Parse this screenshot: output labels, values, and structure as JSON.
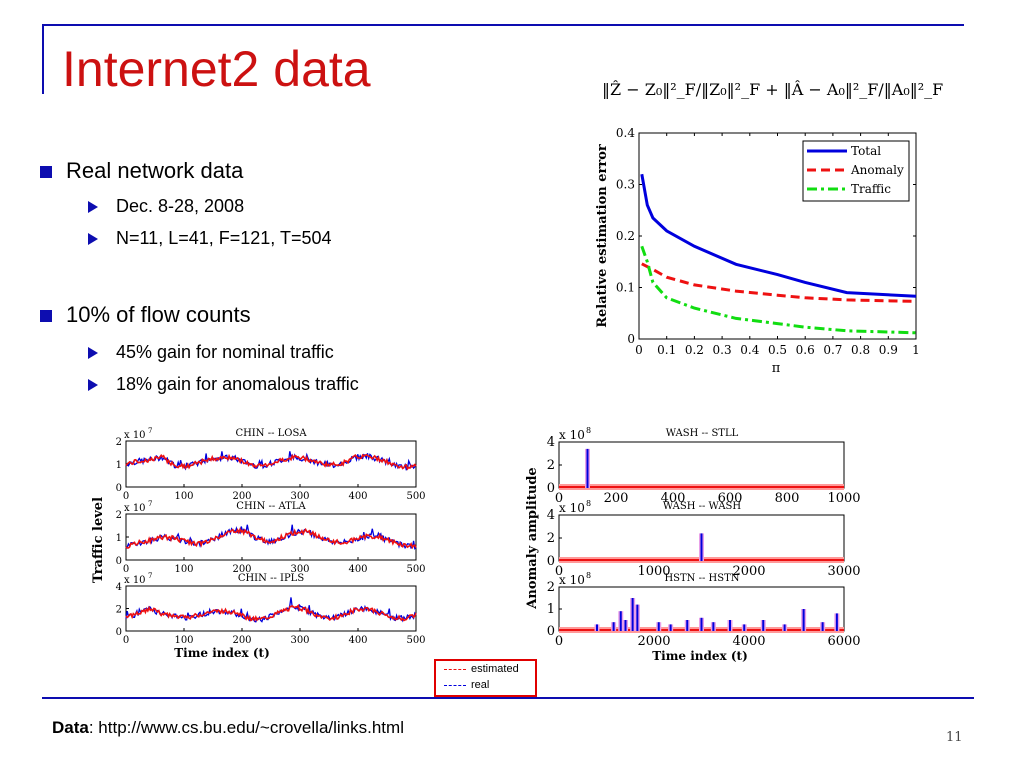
{
  "slide": {
    "title": "Internet2 data",
    "formula": "‖Ẑ − Z₀‖²_F/‖Z₀‖²_F + ‖Â − A₀‖²_F/‖A₀‖²_F",
    "bullets": [
      {
        "text": "Real network data",
        "sub": [
          "Dec. 8-28, 2008",
          "N=11, L=41, F=121, T=504"
        ]
      },
      {
        "text": "10% of flow counts",
        "sub": [
          "45% gain for  nominal traffic",
          "18% gain for anomalous traffic"
        ]
      }
    ],
    "footer_label": "Data",
    "footer_url": ": http://www.cs.bu.edu/~crovella/links.html",
    "page_number": "11",
    "legend_estimated": "estimated",
    "legend_real": "real",
    "colors": {
      "title": "#cc1111",
      "accent": "#0d0db0",
      "total": "#0000dd",
      "anomaly": "#ee1111",
      "traffic": "#11dd11"
    }
  },
  "chart_data": [
    {
      "id": "main",
      "type": "line",
      "ylabel": "Relative estimation error",
      "xlabel": "π",
      "xlim": [
        0,
        1
      ],
      "ylim": [
        0,
        0.4
      ],
      "xticks": [
        "0",
        "0.1",
        "0.2",
        "0.3",
        "0.4",
        "0.5",
        "0.6",
        "0.7",
        "0.8",
        "0.9",
        "1"
      ],
      "yticks": [
        "0",
        "0.1",
        "0.2",
        "0.3",
        "0.4"
      ],
      "legend": "top-right",
      "series": [
        {
          "name": "Total",
          "style": "solid",
          "color": "#0000dd",
          "x": [
            0.01,
            0.03,
            0.05,
            0.1,
            0.2,
            0.35,
            0.5,
            0.6,
            0.75,
            1.0
          ],
          "y": [
            0.32,
            0.26,
            0.235,
            0.21,
            0.18,
            0.145,
            0.125,
            0.11,
            0.09,
            0.083
          ]
        },
        {
          "name": "Anomaly",
          "style": "dashed",
          "color": "#ee1111",
          "x": [
            0.01,
            0.05,
            0.1,
            0.2,
            0.35,
            0.5,
            0.6,
            0.75,
            1.0
          ],
          "y": [
            0.146,
            0.135,
            0.12,
            0.105,
            0.093,
            0.085,
            0.08,
            0.076,
            0.073
          ]
        },
        {
          "name": "Traffic",
          "style": "dashdot",
          "color": "#11dd11",
          "x": [
            0.01,
            0.03,
            0.05,
            0.1,
            0.2,
            0.35,
            0.5,
            0.6,
            0.75,
            1.0
          ],
          "y": [
            0.18,
            0.15,
            0.11,
            0.08,
            0.06,
            0.04,
            0.03,
            0.023,
            0.016,
            0.012
          ]
        }
      ]
    },
    {
      "id": "traffic",
      "type": "line",
      "ylabel": "Traffic level",
      "xlabel": "Time index (t)",
      "panels": [
        {
          "title": "CHIN -- LOSA",
          "exponent": "x 10",
          "exp_power": "7",
          "xlim": [
            0,
            500
          ],
          "ylim": [
            0,
            2
          ],
          "xticks": [
            "0",
            "100",
            "200",
            "300",
            "400",
            "500"
          ],
          "yticks": [
            "0",
            "1",
            "2"
          ],
          "profile": [
            1.0,
            1.12,
            1.18,
            1.3,
            0.95,
            0.88,
            1.05,
            1.22,
            1.28,
            1.25,
            1.05,
            0.9,
            1.02,
            1.2,
            1.3,
            1.22,
            1.05,
            0.95,
            1.05,
            1.3,
            1.35,
            1.2,
            1.0,
            0.85,
            0.95
          ]
        },
        {
          "title": "CHIN -- ATLA",
          "exponent": "x 10",
          "exp_power": "7",
          "xlim": [
            0,
            500
          ],
          "ylim": [
            0,
            2
          ],
          "xticks": [
            "0",
            "100",
            "200",
            "300",
            "400",
            "500"
          ],
          "yticks": [
            "0",
            "1",
            "2"
          ],
          "profile": [
            0.55,
            0.75,
            0.85,
            1.0,
            0.95,
            0.8,
            0.7,
            0.85,
            1.1,
            1.3,
            1.2,
            0.9,
            0.8,
            1.0,
            1.2,
            1.25,
            1.0,
            0.8,
            0.75,
            0.9,
            1.05,
            1.0,
            0.8,
            0.65,
            0.6
          ]
        },
        {
          "title": "CHIN -- IPLS",
          "exponent": "x 10",
          "exp_power": "7",
          "xlim": [
            0,
            500
          ],
          "ylim": [
            0,
            4
          ],
          "xticks": [
            "0",
            "100",
            "200",
            "300",
            "400",
            "500"
          ],
          "yticks": [
            "0",
            "2",
            "4"
          ],
          "profile": [
            1.3,
            1.5,
            2.0,
            1.5,
            1.3,
            1.2,
            1.4,
            1.7,
            1.8,
            1.6,
            1.2,
            1.0,
            1.3,
            1.8,
            2.2,
            1.8,
            1.3,
            1.1,
            1.4,
            1.9,
            2.0,
            1.6,
            1.2,
            1.1,
            1.4
          ]
        }
      ]
    },
    {
      "id": "anomaly",
      "type": "line",
      "ylabel": "Anomaly amplitude",
      "xlabel": "Time index (t)",
      "panels": [
        {
          "title": "WASH -- STLL",
          "exponent": "x 10",
          "exp_power": "8",
          "xlim": [
            0,
            1000
          ],
          "ylim": [
            0,
            4
          ],
          "xticks": [
            "0",
            "200",
            "400",
            "600",
            "800",
            "1000"
          ],
          "yticks": [
            "0",
            "2",
            "4"
          ],
          "spikes": [
            {
              "x": 100,
              "y": 3.4
            }
          ]
        },
        {
          "title": "WASH -- WASH",
          "exponent": "x 10",
          "exp_power": "8",
          "xlim": [
            0,
            3000
          ],
          "ylim": [
            0,
            4
          ],
          "xticks": [
            "0",
            "1000",
            "2000",
            "3000"
          ],
          "yticks": [
            "0",
            "2",
            "4"
          ],
          "spikes": [
            {
              "x": 1500,
              "y": 2.4
            }
          ]
        },
        {
          "title": "HSTN -- HSTN",
          "exponent": "x 10",
          "exp_power": "8",
          "xlim": [
            0,
            6000
          ],
          "ylim": [
            0,
            2
          ],
          "xticks": [
            "0",
            "2000",
            "4000",
            "6000"
          ],
          "yticks": [
            "0",
            "1",
            "2"
          ],
          "spikes": [
            {
              "x": 800,
              "y": 0.3
            },
            {
              "x": 1150,
              "y": 0.4
            },
            {
              "x": 1300,
              "y": 0.9
            },
            {
              "x": 1400,
              "y": 0.5
            },
            {
              "x": 1550,
              "y": 1.5
            },
            {
              "x": 1650,
              "y": 1.2
            },
            {
              "x": 2100,
              "y": 0.4
            },
            {
              "x": 2350,
              "y": 0.3
            },
            {
              "x": 2700,
              "y": 0.5
            },
            {
              "x": 3000,
              "y": 0.6
            },
            {
              "x": 3250,
              "y": 0.4
            },
            {
              "x": 3600,
              "y": 0.5
            },
            {
              "x": 3900,
              "y": 0.3
            },
            {
              "x": 4300,
              "y": 0.5
            },
            {
              "x": 4750,
              "y": 0.3
            },
            {
              "x": 5150,
              "y": 1.0
            },
            {
              "x": 5550,
              "y": 0.4
            },
            {
              "x": 5850,
              "y": 0.8
            }
          ]
        }
      ]
    }
  ]
}
